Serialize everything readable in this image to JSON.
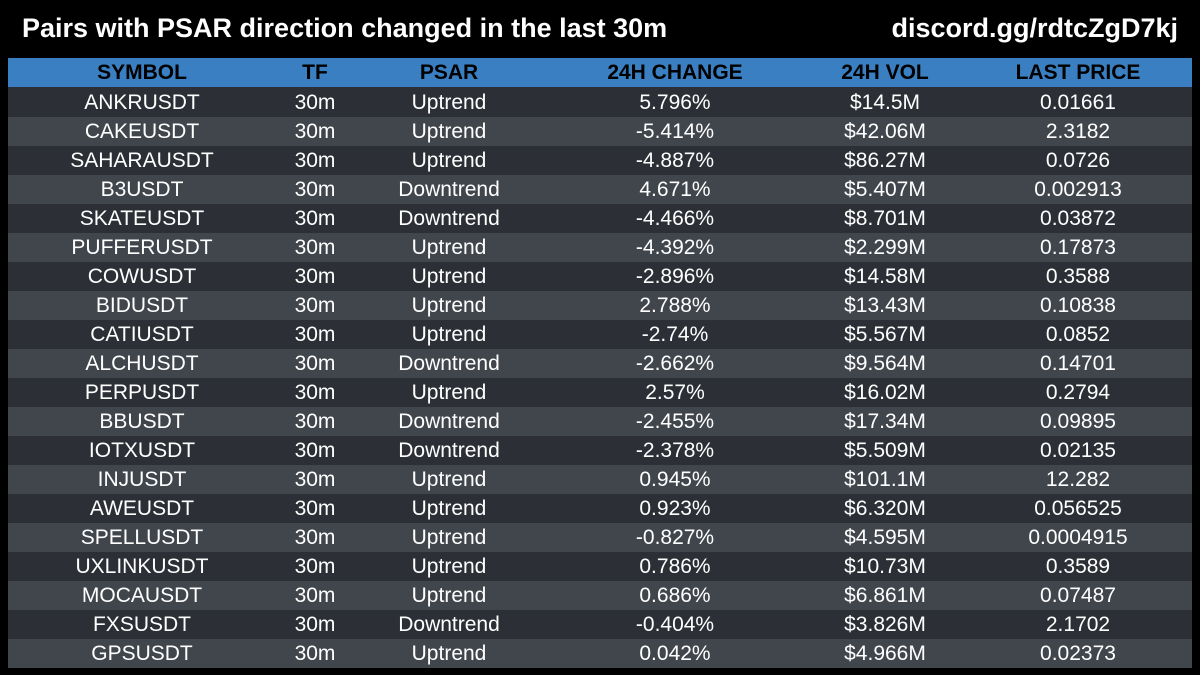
{
  "header": {
    "title": "Pairs with PSAR direction changed in the last 30m",
    "invite": "discord.gg/rdtcZgD7kj"
  },
  "colors": {
    "background": "#000000",
    "header_row": "#3a7fc1",
    "row_dark": "#2c3036",
    "row_light": "#41464d",
    "text": "#ffffff"
  },
  "table": {
    "columns": [
      "SYMBOL",
      "TF",
      "PSAR",
      "24H CHANGE",
      "24H VOL",
      "LAST PRICE"
    ],
    "rows": [
      [
        "ANKRUSDT",
        "30m",
        "Uptrend",
        "5.796%",
        "$14.5M",
        "0.01661"
      ],
      [
        "CAKEUSDT",
        "30m",
        "Uptrend",
        "-5.414%",
        "$42.06M",
        "2.3182"
      ],
      [
        "SAHARAUSDT",
        "30m",
        "Uptrend",
        "-4.887%",
        "$86.27M",
        "0.0726"
      ],
      [
        "B3USDT",
        "30m",
        "Downtrend",
        "4.671%",
        "$5.407M",
        "0.002913"
      ],
      [
        "SKATEUSDT",
        "30m",
        "Downtrend",
        "-4.466%",
        "$8.701M",
        "0.03872"
      ],
      [
        "PUFFERUSDT",
        "30m",
        "Uptrend",
        "-4.392%",
        "$2.299M",
        "0.17873"
      ],
      [
        "COWUSDT",
        "30m",
        "Uptrend",
        "-2.896%",
        "$14.58M",
        "0.3588"
      ],
      [
        "BIDUSDT",
        "30m",
        "Uptrend",
        "2.788%",
        "$13.43M",
        "0.10838"
      ],
      [
        "CATIUSDT",
        "30m",
        "Uptrend",
        "-2.74%",
        "$5.567M",
        "0.0852"
      ],
      [
        "ALCHUSDT",
        "30m",
        "Downtrend",
        "-2.662%",
        "$9.564M",
        "0.14701"
      ],
      [
        "PERPUSDT",
        "30m",
        "Uptrend",
        "2.57%",
        "$16.02M",
        "0.2794"
      ],
      [
        "BBUSDT",
        "30m",
        "Downtrend",
        "-2.455%",
        "$17.34M",
        "0.09895"
      ],
      [
        "IOTXUSDT",
        "30m",
        "Downtrend",
        "-2.378%",
        "$5.509M",
        "0.02135"
      ],
      [
        "INJUSDT",
        "30m",
        "Uptrend",
        "0.945%",
        "$101.1M",
        "12.282"
      ],
      [
        "AWEUSDT",
        "30m",
        "Uptrend",
        "0.923%",
        "$6.320M",
        "0.056525"
      ],
      [
        "SPELLUSDT",
        "30m",
        "Uptrend",
        "-0.827%",
        "$4.595M",
        "0.0004915"
      ],
      [
        "UXLINKUSDT",
        "30m",
        "Uptrend",
        "0.786%",
        "$10.73M",
        "0.3589"
      ],
      [
        "MOCAUSDT",
        "30m",
        "Uptrend",
        "0.686%",
        "$6.861M",
        "0.07487"
      ],
      [
        "FXSUSDT",
        "30m",
        "Downtrend",
        "-0.404%",
        "$3.826M",
        "2.1702"
      ],
      [
        "GPSUSDT",
        "30m",
        "Uptrend",
        "0.042%",
        "$4.966M",
        "0.02373"
      ]
    ]
  }
}
